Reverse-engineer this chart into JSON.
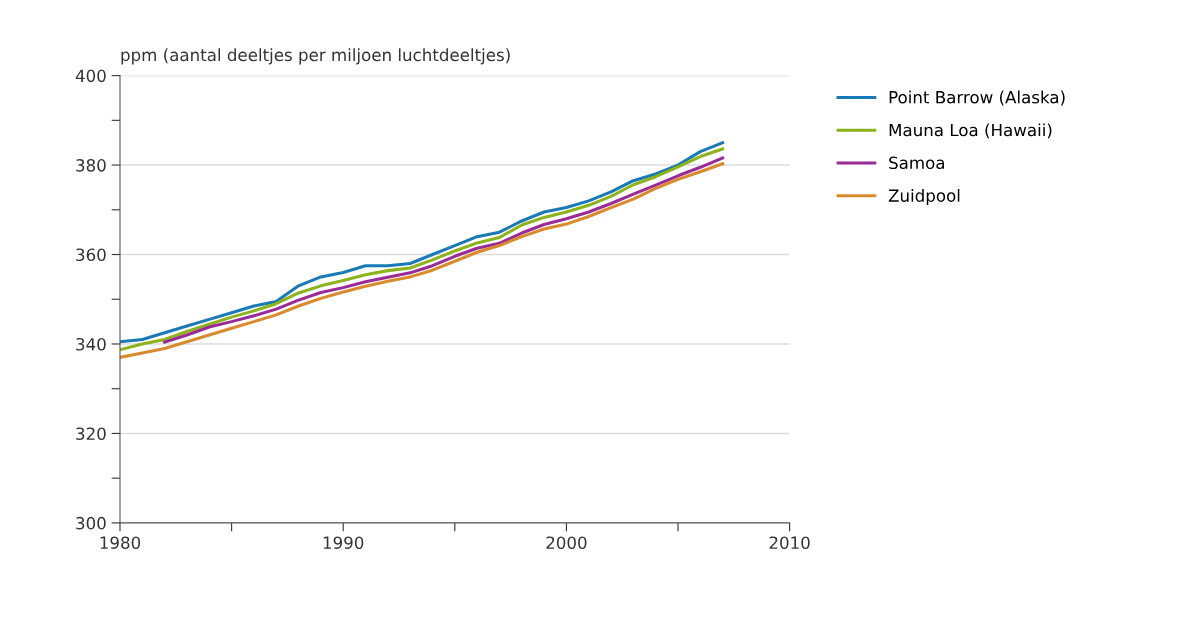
{
  "chart_data": {
    "type": "line",
    "ylabel": "ppm (aantal deeltjes per miljoen luchtdeeltjes)",
    "x": [
      1980,
      1981,
      1982,
      1983,
      1984,
      1985,
      1986,
      1987,
      1988,
      1989,
      1990,
      1991,
      1992,
      1993,
      1994,
      1995,
      1996,
      1997,
      1998,
      1999,
      2000,
      2001,
      2002,
      2003,
      2004,
      2005,
      2006,
      2007
    ],
    "series": [
      {
        "name": "Point Barrow (Alaska)",
        "color": "#1a7ab5",
        "values": [
          340.5,
          341,
          342.5,
          344,
          345.5,
          347,
          348.5,
          349.5,
          353,
          355,
          356,
          357.5,
          357.5,
          358,
          360,
          362,
          364,
          365,
          367.5,
          369.5,
          370.5,
          372,
          374,
          376.5,
          378,
          380,
          383,
          385
        ]
      },
      {
        "name": "Mauna Loa (Hawaii)",
        "color": "#8db31c",
        "values": [
          338.7,
          340,
          341,
          342.8,
          344.4,
          346,
          347.4,
          349,
          351.4,
          353,
          354.2,
          355.5,
          356.4,
          357,
          358.8,
          360.8,
          362.6,
          363.8,
          366.6,
          368.3,
          369.5,
          371,
          373,
          375.6,
          377.4,
          379.6,
          381.9,
          383.6
        ]
      },
      {
        "name": "Samoa",
        "color": "#9a2a96",
        "values": [
          null,
          null,
          340.4,
          342,
          343.8,
          345,
          346.3,
          347.8,
          349.8,
          351.5,
          352.6,
          353.9,
          354.9,
          355.9,
          357.5,
          359.6,
          361.4,
          362.5,
          364.8,
          366.7,
          368,
          369.5,
          371.4,
          373.5,
          375.5,
          377.6,
          379.5,
          381.6
        ]
      },
      {
        "name": "Zuidpool",
        "color": "#d88a2c",
        "values": [
          337,
          338,
          339,
          340.5,
          342,
          343.5,
          345,
          346.5,
          348.5,
          350.2,
          351.6,
          352.9,
          354,
          355,
          356.5,
          358.5,
          360.5,
          362,
          364,
          365.7,
          366.8,
          368.5,
          370.5,
          372.4,
          374.8,
          376.8,
          378.5,
          380.3
        ]
      }
    ],
    "xlim": [
      1980,
      2010
    ],
    "xticks": [
      1980,
      {
        "value": 1985,
        "label": null
      },
      1990,
      {
        "value": 1995,
        "label": null
      },
      2000,
      {
        "value": 2005,
        "label": null
      },
      2010
    ],
    "ylim": [
      300,
      400
    ],
    "yticks": [
      300,
      {
        "value": 310,
        "label": null
      },
      320,
      {
        "value": 330,
        "label": null
      },
      340,
      {
        "value": 350,
        "label": null
      },
      360,
      {
        "value": 370,
        "label": null
      },
      380,
      {
        "value": 390,
        "label": null
      },
      400
    ],
    "grid": "y",
    "legend": "right",
    "line_style": "solid",
    "marker": "none"
  }
}
